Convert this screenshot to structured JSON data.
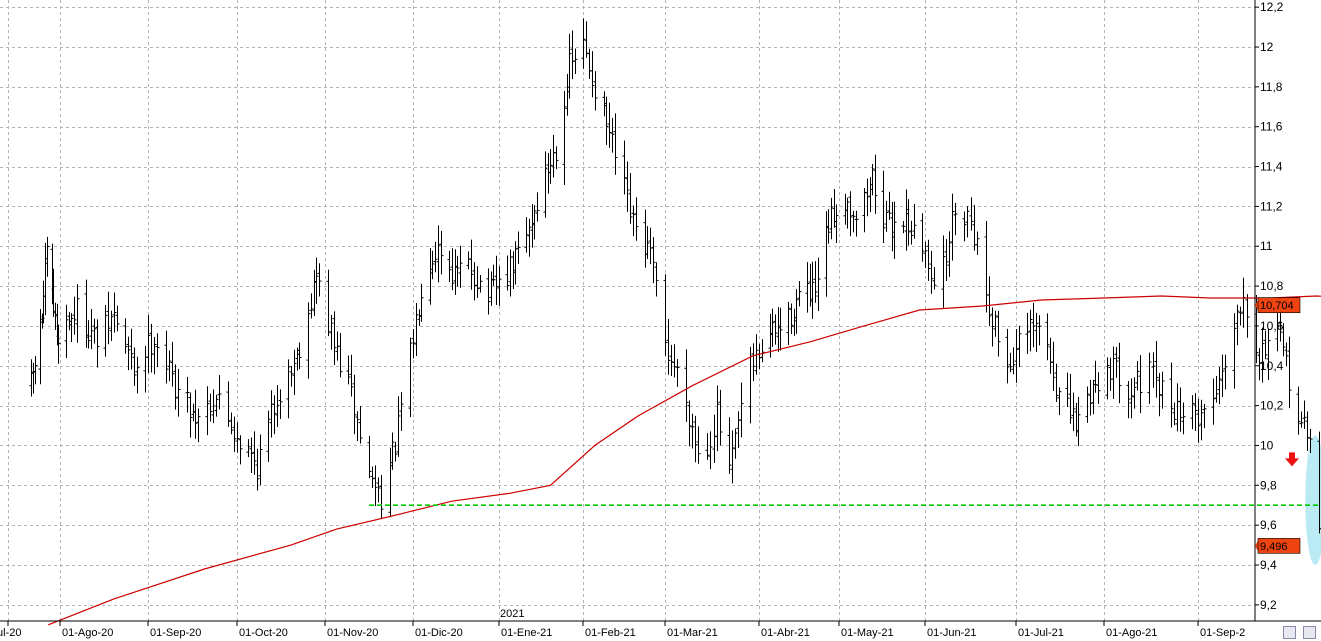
{
  "chart_data": {
    "type": "ohlc-bar",
    "ylim": [
      9.1,
      12.2
    ],
    "y_ticks": [
      "12,2",
      "12",
      "11,8",
      "11,6",
      "11,4",
      "11,2",
      "11",
      "10,8",
      "10,6",
      "10,4",
      "10,2",
      "10",
      "9,8",
      "9,6",
      "9,4",
      "9,2"
    ],
    "y_tick_values": [
      12.2,
      12.0,
      11.8,
      11.6,
      11.4,
      11.2,
      11.0,
      10.8,
      10.6,
      10.4,
      10.2,
      10.0,
      9.8,
      9.6,
      9.4,
      9.2
    ],
    "x_ticks": [
      "ul-20",
      "01-Ago-20",
      "01-Sep-20",
      "01-Oct-20",
      "01-Nov-20",
      "01-Dic-20",
      "01-Ene-21",
      "01-Feb-21",
      "01-Mar-21",
      "01-Abr-21",
      "01-May-21",
      "01-Jun-21",
      "01-Jul-21",
      "01-Ago-21",
      "01-Sep-2"
    ],
    "x_tick_dates": [
      "2020-07-01",
      "2020-08-01",
      "2020-09-01",
      "2020-10-01",
      "2020-11-01",
      "2020-12-01",
      "2021-01-01",
      "2021-02-01",
      "2021-03-01",
      "2021-04-01",
      "2021-05-01",
      "2021-06-01",
      "2021-07-01",
      "2021-08-01",
      "2021-09-01"
    ],
    "year_label": "2021",
    "date_range": [
      "2020-07-15",
      "2021-09-08"
    ],
    "grid": true,
    "price_path": [
      [
        "2020-07-15",
        10.3
      ],
      [
        "2020-07-21",
        10.65
      ],
      [
        "2020-07-24",
        10.95
      ],
      [
        "2020-07-30",
        10.55
      ],
      [
        "2020-08-07",
        10.68
      ],
      [
        "2020-08-14",
        10.52
      ],
      [
        "2020-08-20",
        10.65
      ],
      [
        "2020-08-27",
        10.38
      ],
      [
        "2020-09-03",
        10.55
      ],
      [
        "2020-09-10",
        10.3
      ],
      [
        "2020-09-17",
        10.15
      ],
      [
        "2020-09-24",
        10.25
      ],
      [
        "2020-10-01",
        10.05
      ],
      [
        "2020-10-08",
        9.9
      ],
      [
        "2020-10-15",
        10.25
      ],
      [
        "2020-10-22",
        10.45
      ],
      [
        "2020-10-29",
        10.85
      ],
      [
        "2020-11-04",
        10.5
      ],
      [
        "2020-11-10",
        10.25
      ],
      [
        "2020-11-16",
        9.85
      ],
      [
        "2020-11-20",
        9.75
      ],
      [
        "2020-11-25",
        10.0
      ],
      [
        "2020-11-30",
        10.45
      ],
      [
        "2020-12-05",
        10.9
      ],
      [
        "2020-12-10",
        11.0
      ],
      [
        "2020-12-16",
        10.85
      ],
      [
        "2020-12-21",
        10.9
      ],
      [
        "2020-12-28",
        10.75
      ],
      [
        "2021-01-04",
        10.85
      ],
      [
        "2021-01-11",
        11.05
      ],
      [
        "2021-01-18",
        11.35
      ],
      [
        "2021-01-22",
        11.5
      ],
      [
        "2021-01-27",
        11.9
      ],
      [
        "2021-02-01",
        12.0
      ],
      [
        "2021-02-06",
        11.75
      ],
      [
        "2021-02-12",
        11.45
      ],
      [
        "2021-02-18",
        11.1
      ],
      [
        "2021-02-24",
        10.95
      ],
      [
        "2021-03-01",
        10.5
      ],
      [
        "2021-03-07",
        10.3
      ],
      [
        "2021-03-13",
        9.9
      ],
      [
        "2021-03-18",
        10.15
      ],
      [
        "2021-03-22",
        9.85
      ],
      [
        "2021-03-28",
        10.35
      ],
      [
        "2021-04-04",
        10.55
      ],
      [
        "2021-04-11",
        10.6
      ],
      [
        "2021-04-16",
        10.75
      ],
      [
        "2021-04-22",
        10.75
      ],
      [
        "2021-04-27",
        11.1
      ],
      [
        "2021-05-02",
        11.25
      ],
      [
        "2021-05-08",
        11.15
      ],
      [
        "2021-05-13",
        11.35
      ],
      [
        "2021-05-18",
        11.1
      ],
      [
        "2021-05-25",
        11.15
      ],
      [
        "2021-06-01",
        10.95
      ],
      [
        "2021-06-06",
        10.8
      ],
      [
        "2021-06-11",
        11.2
      ],
      [
        "2021-06-16",
        11.15
      ],
      [
        "2021-06-22",
        10.7
      ],
      [
        "2021-06-28",
        10.4
      ],
      [
        "2021-07-04",
        10.55
      ],
      [
        "2021-07-10",
        10.6
      ],
      [
        "2021-07-16",
        10.25
      ],
      [
        "2021-07-22",
        10.1
      ],
      [
        "2021-07-28",
        10.3
      ],
      [
        "2021-08-03",
        10.4
      ],
      [
        "2021-08-09",
        10.3
      ],
      [
        "2021-08-16",
        10.35
      ],
      [
        "2021-08-23",
        10.2
      ],
      [
        "2021-08-30",
        10.15
      ],
      [
        "2021-09-05",
        10.18
      ],
      [
        "2021-09-11",
        10.5
      ],
      [
        "2021-09-16",
        10.78
      ],
      [
        "2021-09-21",
        10.45
      ],
      [
        "2021-09-26",
        10.6
      ],
      [
        "2021-09-30",
        10.4
      ],
      [
        "2021-10-04",
        10.15
      ],
      [
        "2021-10-08",
        10.0
      ],
      [
        "2021-10-12",
        9.5
      ]
    ],
    "series": [
      {
        "name": "",
        "color": "#cc0000",
        "points": [
          [
            "2020-07-25",
            9.1
          ],
          [
            "2020-08-20",
            9.23
          ],
          [
            "2020-09-20",
            9.38
          ],
          [
            "2020-10-20",
            9.5
          ],
          [
            "2020-11-05",
            9.58
          ],
          [
            "2020-11-25",
            9.65
          ],
          [
            "2020-12-15",
            9.72
          ],
          [
            "2021-01-05",
            9.76
          ],
          [
            "2021-01-20",
            9.8
          ],
          [
            "2021-02-05",
            10.0
          ],
          [
            "2021-02-20",
            10.15
          ],
          [
            "2021-03-10",
            10.3
          ],
          [
            "2021-03-30",
            10.45
          ],
          [
            "2021-04-20",
            10.52
          ],
          [
            "2021-05-10",
            10.6
          ],
          [
            "2021-05-30",
            10.68
          ],
          [
            "2021-06-20",
            10.7
          ],
          [
            "2021-07-10",
            10.73
          ],
          [
            "2021-08-01",
            10.74
          ],
          [
            "2021-08-20",
            10.75
          ],
          [
            "2021-09-05",
            10.74
          ],
          [
            "2021-09-25",
            10.74
          ],
          [
            "2021-10-10",
            10.75
          ],
          [
            "2021-10-25",
            10.74
          ],
          [
            "2021-11-10",
            10.73
          ]
        ]
      }
    ],
    "support_line": {
      "value": 9.7,
      "color": "#00cc00",
      "start": "2020-11-16",
      "end": "2021-10-12"
    },
    "last_value_badges": [
      {
        "label": "10,704",
        "value": 10.704,
        "color": "#ee4411"
      },
      {
        "label": "9,496",
        "value": 9.496,
        "color": "#ee4411"
      }
    ],
    "arrow": {
      "color": "#ee1111",
      "date": "2021-10-02",
      "value": 9.92,
      "direction": "down"
    },
    "highlight_ellipse": {
      "color": "#aee8f2",
      "date": "2021-10-10",
      "value_center": 9.72,
      "value_span": [
        9.4,
        10.05
      ]
    }
  }
}
